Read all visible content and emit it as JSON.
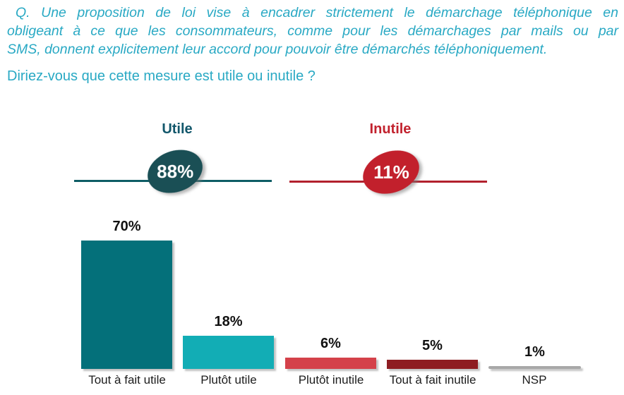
{
  "question": {
    "lines": [
      "Q. Une proposition de loi vise à encadrer strictement le démarchage téléphonique en",
      "obligeant à ce que les consommateurs, comme pour les démarchages par mails ou par",
      "SMS, donnent explicitement leur accord pour pouvoir être démarchés téléphoniquement."
    ],
    "subquestion": "Diriez-vous que cette mesure est utile ou inutile ?"
  },
  "summary": {
    "utile": {
      "label": "Utile",
      "value": "88%"
    },
    "inutile": {
      "label": "Inutile",
      "value": "11%"
    }
  },
  "chart_data": {
    "type": "bar",
    "title": "",
    "categories": [
      "Tout à fait utile",
      "Plutôt utile",
      "Plutôt inutile",
      "Tout à fait inutile",
      "NSP"
    ],
    "values": [
      70,
      18,
      6,
      5,
      1
    ],
    "value_labels": [
      "70%",
      "18%",
      "6%",
      "5%",
      "1%"
    ],
    "colors": [
      "#04707a",
      "#12adb5",
      "#d4414a",
      "#8e1d22",
      "#a8a8a8"
    ],
    "totals": {
      "utile": 88,
      "inutile": 11
    },
    "xlabel": "",
    "ylabel": "",
    "ylim": [
      0,
      75
    ],
    "grid": false,
    "legend": false
  },
  "colors": {
    "question": "#29a9c4",
    "utile_label": "#12576b",
    "utile_oval": "#1a4f55",
    "utile_line": "#0e5d65",
    "inutile_label": "#c2222e",
    "inutile_oval": "#c2202c",
    "inutile_line": "#b2202d",
    "value_label": "#111111",
    "category_label": "#1c1c1c"
  }
}
